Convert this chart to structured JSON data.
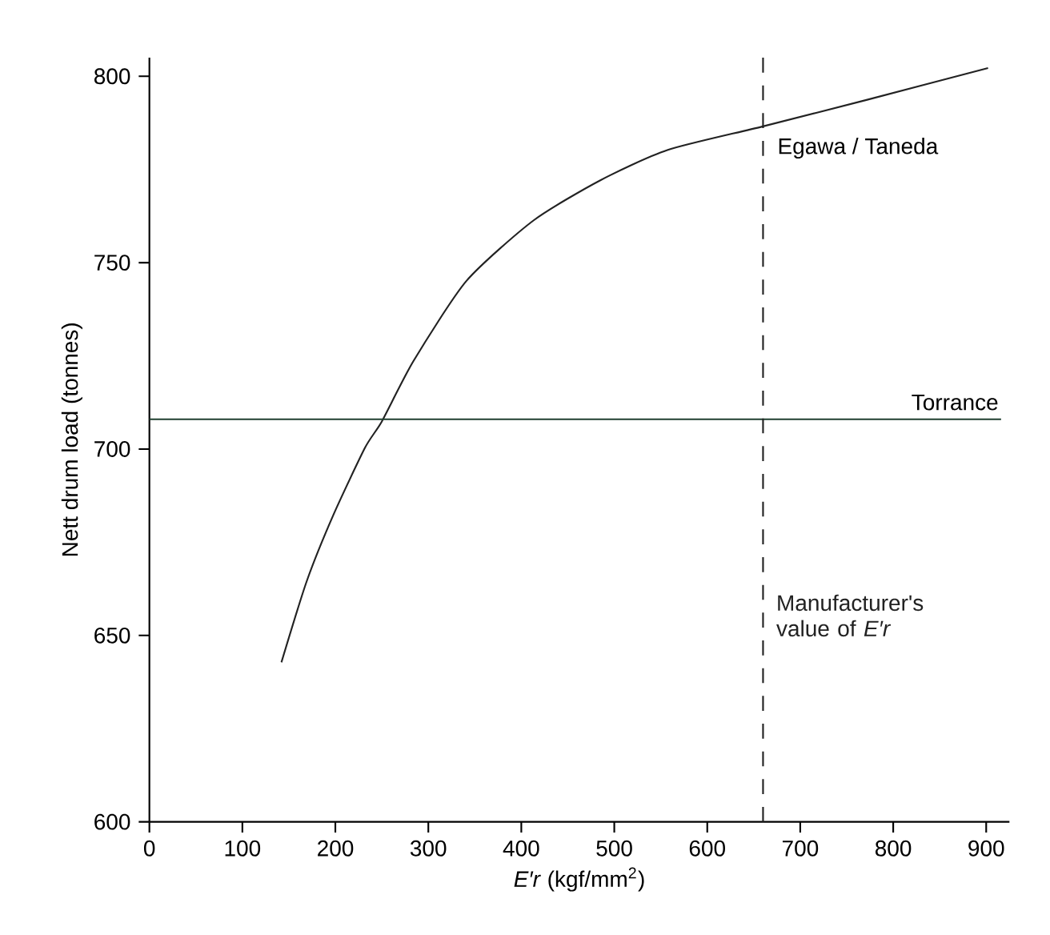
{
  "chart_data": {
    "type": "line",
    "xlabel": "*E′r* (kgf/mm$^{2}$)",
    "ylabel": "Nett drum load (tonnes)",
    "xlim": [
      0,
      925
    ],
    "ylim": [
      600,
      805
    ],
    "xticks": [
      0,
      100,
      200,
      300,
      400,
      500,
      600,
      700,
      800,
      900
    ],
    "yticks": [
      600,
      650,
      700,
      750,
      800
    ],
    "series": [
      {
        "name": "Egawa / Taneda",
        "color": "#222222",
        "line_style": "solid",
        "x": [
          142,
          169,
          198,
          232,
          250,
          284,
          341,
          413,
          485,
          557,
          659,
          772,
          902
        ],
        "values": [
          642.8,
          664.4,
          682.4,
          700.4,
          707.4,
          723.6,
          745.1,
          761.3,
          772.1,
          780.2,
          786.5,
          793.7,
          802.2
        ]
      },
      {
        "name": "Torrance",
        "color": "#1f3f2f",
        "line_style": "solid",
        "x": [
          0,
          916
        ],
        "values": [
          708,
          708
        ]
      }
    ],
    "ref_lines": [
      {
        "axis": "x",
        "value": 660,
        "label": "Manufacturer's value of *E′r*",
        "color": "#222222",
        "line_style": "dashed"
      }
    ]
  }
}
